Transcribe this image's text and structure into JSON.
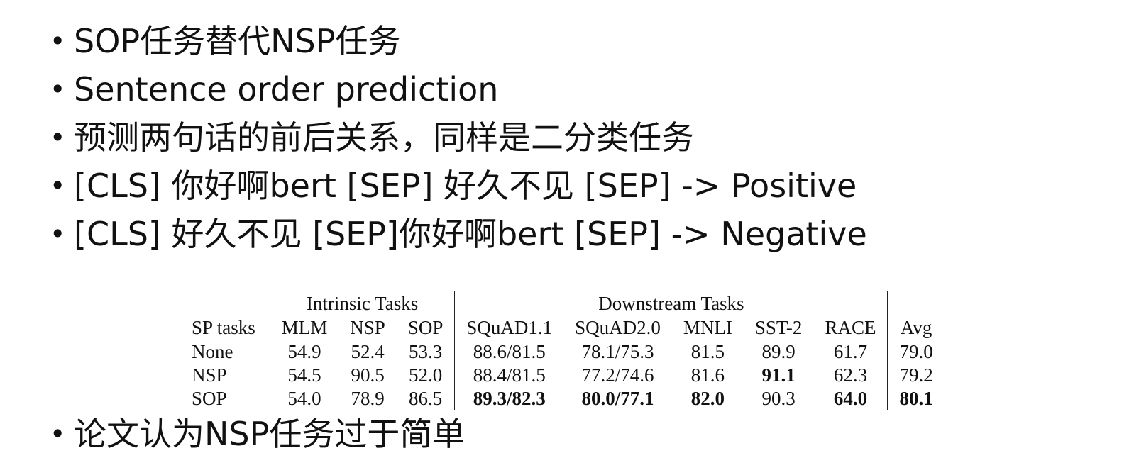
{
  "bullets": [
    "SOP任务替代NSP任务",
    "Sentence order prediction",
    "预测两句话的前后关系，同样是二分类任务",
    "[CLS] 你好啊bert [SEP] 好久不见 [SEP] -> Positive",
    "[CLS] 好久不见 [SEP]你好啊bert [SEP] -> Negative"
  ],
  "bullet_symbol": "•",
  "last_bullet": "论文认为NSP任务过于简单",
  "table": {
    "group_headers": {
      "intrinsic": "Intrinsic Tasks",
      "downstream": "Downstream Tasks"
    },
    "columns": [
      "SP tasks",
      "MLM",
      "NSP",
      "SOP",
      "SQuAD1.1",
      "SQuAD2.0",
      "MNLI",
      "SST-2",
      "RACE",
      "Avg"
    ],
    "rows": [
      {
        "cells": [
          "None",
          "54.9",
          "52.4",
          "53.3",
          "88.6/81.5",
          "78.1/75.3",
          "81.5",
          "89.9",
          "61.7",
          "79.0"
        ],
        "bold": []
      },
      {
        "cells": [
          "NSP",
          "54.5",
          "90.5",
          "52.0",
          "88.4/81.5",
          "77.2/74.6",
          "81.6",
          "91.1",
          "62.3",
          "79.2"
        ],
        "bold": [
          7
        ]
      },
      {
        "cells": [
          "SOP",
          "54.0",
          "78.9",
          "86.5",
          "89.3/82.3",
          "80.0/77.1",
          "82.0",
          "90.3",
          "64.0",
          "80.1"
        ],
        "bold": [
          4,
          5,
          6,
          8,
          9
        ]
      }
    ]
  }
}
